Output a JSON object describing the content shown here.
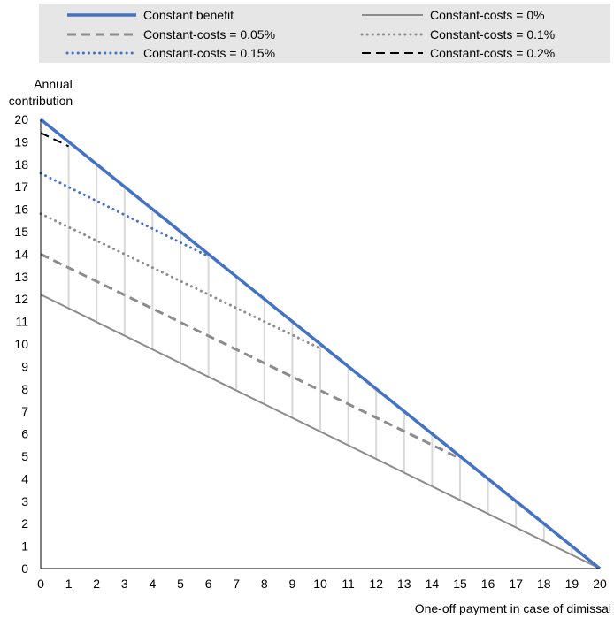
{
  "chart_data": {
    "type": "line",
    "title": "",
    "xlabel": "One-off payment in case of dimissal",
    "ylabel_lines": [
      "Annual",
      "contribution"
    ],
    "xlim": [
      0,
      20
    ],
    "ylim": [
      0,
      20
    ],
    "x_ticks": [
      0,
      1,
      2,
      3,
      4,
      5,
      6,
      7,
      8,
      9,
      10,
      11,
      12,
      13,
      14,
      15,
      16,
      17,
      18,
      19,
      20
    ],
    "y_ticks": [
      0,
      1,
      2,
      3,
      4,
      5,
      6,
      7,
      8,
      9,
      10,
      11,
      12,
      13,
      14,
      15,
      16,
      17,
      18,
      19,
      20
    ],
    "legend_position": "top",
    "series": [
      {
        "name": "Constant benefit",
        "style": "solid",
        "color": "#4472C4",
        "x": [
          0,
          20
        ],
        "y": [
          20,
          0
        ]
      },
      {
        "name": "Constant-costs = 0%",
        "style": "solid",
        "color": "#8C8C8C",
        "x": [
          0,
          20
        ],
        "y": [
          12.2,
          0
        ]
      },
      {
        "name": "Constant-costs = 0.05%",
        "style": "dashed",
        "color": "#8C8C8C",
        "x": [
          0,
          15
        ],
        "y": [
          14.0,
          4.9
        ]
      },
      {
        "name": "Constant-costs = 0.1%",
        "style": "dotted",
        "color": "#8C8C8C",
        "x": [
          0,
          10
        ],
        "y": [
          15.8,
          9.8
        ]
      },
      {
        "name": "Constant-costs = 0.15%",
        "style": "dotted",
        "color": "#4472C4",
        "x": [
          0,
          6
        ],
        "y": [
          17.6,
          13.9
        ]
      },
      {
        "name": "Constant-costs = 0.2%",
        "style": "dashed",
        "color": "#000000",
        "x": [
          0,
          1
        ],
        "y": [
          19.4,
          18.8
        ]
      }
    ],
    "range_bars": {
      "color": "#D9D9D9",
      "x": [
        1,
        2,
        3,
        4,
        5,
        6,
        7,
        8,
        9,
        10,
        11,
        12,
        13,
        14,
        15,
        16,
        17,
        18,
        19
      ],
      "low": [
        11.6,
        11.0,
        10.4,
        9.8,
        9.15,
        8.55,
        7.9,
        7.3,
        6.7,
        6.1,
        5.5,
        4.9,
        4.3,
        3.7,
        3.05,
        2.45,
        1.85,
        1.2,
        0.6
      ],
      "high": [
        19,
        18,
        17,
        16,
        15,
        14,
        13,
        12,
        11,
        10,
        9,
        8,
        7,
        6,
        5,
        4,
        3,
        2,
        1
      ]
    }
  }
}
